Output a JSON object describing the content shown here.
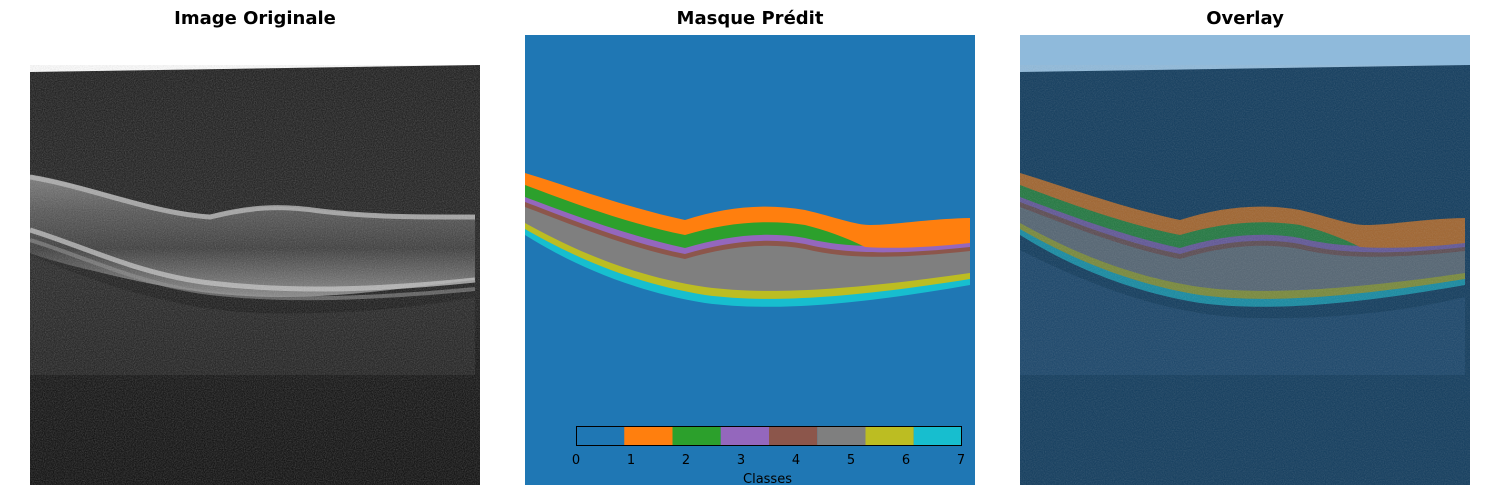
{
  "panels": {
    "original": {
      "title": "Image Originale"
    },
    "mask": {
      "title": "Masque Prédit"
    },
    "overlay": {
      "title": "Overlay"
    }
  },
  "colorbar": {
    "label": "Classes",
    "ticks": [
      "0",
      "1",
      "2",
      "3",
      "4",
      "5",
      "6",
      "7"
    ],
    "class_colors": [
      "#1f77b4",
      "#ff7f0e",
      "#2ca02c",
      "#9467bd",
      "#8c564b",
      "#7f7f7f",
      "#bcbd22",
      "#17becf"
    ]
  },
  "colors": {
    "background": "#1f77b4",
    "orange": "#ff7f0e",
    "green": "#2ca02c",
    "purple": "#9467bd",
    "brown": "#8c564b",
    "gray": "#7f7f7f",
    "olive": "#bcbd22",
    "cyan": "#17becf"
  }
}
